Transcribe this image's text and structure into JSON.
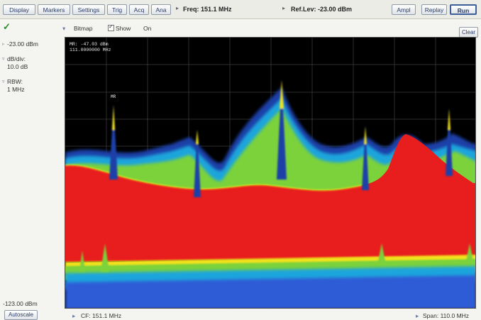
{
  "toolbar": {
    "buttons": [
      "Display",
      "Markers",
      "Settings",
      "Trig",
      "Acq",
      "Ana",
      "Ampl",
      "Replay",
      "Run"
    ],
    "freq_label": "Freq:",
    "freq_value": "151.1 MHz",
    "ref_label": "Ref.Lev:",
    "ref_value": "-23.00 dBm"
  },
  "options": {
    "bitmap_label": "Bitmap",
    "show_label": "Show",
    "show_state": "On",
    "clear_label": "Clear"
  },
  "sidebar": {
    "top_level": "-23.00 dBm",
    "dbdiv_label": "dB/div:",
    "dbdiv_value": "10.0 dB",
    "rbw_label": "RBW:",
    "rbw_value": "1 MHz",
    "bottom_level": "-123.00 dBm"
  },
  "plot": {
    "marker_readout_1": "MR: -47.03 dBm",
    "marker_readout_2": "111.0000000 MHz",
    "marker_label": "MR",
    "colors": {
      "background": "#000000",
      "density_high": "#e81d1d",
      "density_mid": "#7bd23a",
      "density_low": "#2e5bd6",
      "density_peak": "#f3e21b"
    }
  },
  "bottom": {
    "autoscale_label": "Autoscale",
    "cf_label": "CF: 151.1 MHz",
    "span_label": "Span: 110.0 MHz"
  }
}
